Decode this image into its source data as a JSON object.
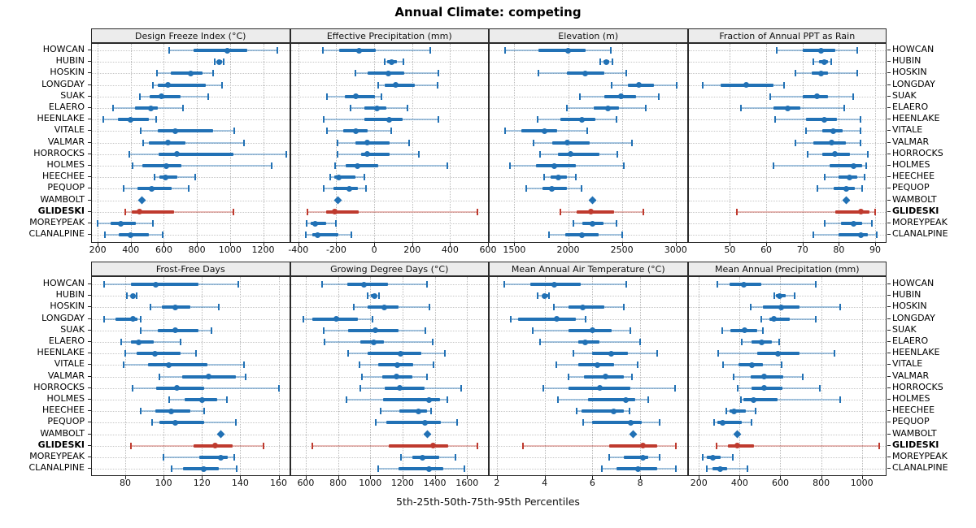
{
  "title": "Annual Climate: competing",
  "footer": "5th-25th-50th-75th-95th Percentiles",
  "stations": [
    "HOWCAN",
    "HUBIN",
    "HOSKIN",
    "LONGDAY",
    "SUAK",
    "ELAERO",
    "HEENLAKE",
    "VITALE",
    "VALMAR",
    "HORROCKS",
    "HOLMES",
    "HEECHEE",
    "PEQUOP",
    "WAMBOLT",
    "GLIDESKI",
    "MOREYPEAK",
    "CLANALPINE"
  ],
  "highlight_station": "GLIDESKI",
  "single_point_station": "WAMBOLT",
  "colors": {
    "series": "#2171b5",
    "series_light": "rgba(33,113,181,0.40)",
    "highlight": "#bf3a2e",
    "highlight_light": "rgba(191,58,46,0.35)",
    "strip_bg": "#ececec",
    "panel_border": "#2a2a2a",
    "grid": "#b9b9b9"
  },
  "chart_data": [
    {
      "type": "dotplot-percentiles",
      "title": "Design Freeze Index (°C)",
      "ticks": [
        200,
        400,
        600,
        800,
        1000,
        1200
      ],
      "xlim": [
        165,
        1357
      ],
      "percentiles": [
        [
          630,
          780,
          985,
          1105,
          1285
        ],
        [
          905,
          920,
          935,
          950,
          960
        ],
        [
          560,
          640,
          760,
          835,
          895
        ],
        [
          535,
          565,
          625,
          855,
          950
        ],
        [
          455,
          512,
          585,
          700,
          870
        ],
        [
          295,
          425,
          520,
          565,
          715
        ],
        [
          235,
          320,
          400,
          510,
          555
        ],
        [
          460,
          565,
          670,
          895,
          1025
        ],
        [
          475,
          510,
          625,
          730,
          1085
        ],
        [
          390,
          570,
          680,
          1020,
          1340
        ],
        [
          410,
          470,
          615,
          705,
          1250
        ],
        [
          545,
          575,
          610,
          680,
          790
        ],
        [
          355,
          440,
          525,
          645,
          750
        ],
        [
          465
        ],
        [
          365,
          405,
          455,
          660,
          1020
        ],
        [
          200,
          277,
          338,
          430,
          533
        ],
        [
          245,
          325,
          400,
          510,
          595
        ]
      ]
    },
    {
      "type": "dotplot-percentiles",
      "title": "Effective Precipitation (mm)",
      "ticks": [
        -400,
        -200,
        0,
        200,
        400,
        600
      ],
      "xlim": [
        -440,
        600
      ],
      "percentiles": [
        [
          -270,
          -185,
          -80,
          10,
          295
        ],
        [
          55,
          70,
          90,
          120,
          155
        ],
        [
          -100,
          -35,
          75,
          160,
          340
        ],
        [
          20,
          55,
          115,
          215,
          335
        ],
        [
          -250,
          -155,
          -95,
          5,
          40
        ],
        [
          -125,
          -50,
          15,
          65,
          175
        ],
        [
          -265,
          -50,
          80,
          150,
          340
        ],
        [
          -250,
          -165,
          -95,
          -35,
          90
        ],
        [
          -195,
          -100,
          -35,
          80,
          185
        ],
        [
          -195,
          -70,
          -35,
          80,
          235
        ],
        [
          -205,
          -150,
          -90,
          20,
          385
        ],
        [
          -230,
          -210,
          -185,
          -100,
          -50
        ],
        [
          -265,
          -215,
          -130,
          -85,
          -45
        ],
        [
          -190
        ],
        [
          -350,
          -255,
          -210,
          -80,
          545
        ],
        [
          -355,
          -335,
          -310,
          -255,
          -200
        ],
        [
          -360,
          -325,
          -300,
          -190,
          -120
        ]
      ]
    },
    {
      "type": "dotplot-percentiles",
      "title": "Elevation (m)",
      "ticks": [
        1500,
        2000,
        2500,
        3000
      ],
      "xlim": [
        1270,
        3104
      ],
      "percentiles": [
        [
          1410,
          1720,
          2000,
          2160,
          2400
        ],
        [
          2300,
          2330,
          2355,
          2380,
          2410
        ],
        [
          1720,
          1990,
          2160,
          2340,
          2540
        ],
        [
          2405,
          2555,
          2660,
          2800,
          3010
        ],
        [
          2110,
          2340,
          2490,
          2630,
          2840
        ],
        [
          1990,
          2240,
          2370,
          2475,
          2725
        ],
        [
          1715,
          1925,
          2125,
          2255,
          2450
        ],
        [
          1410,
          1565,
          1780,
          1900,
          2175
        ],
        [
          1675,
          1850,
          1990,
          2200,
          2590
        ],
        [
          1740,
          1905,
          2025,
          2290,
          2455
        ],
        [
          1460,
          1700,
          1875,
          2075,
          2520
        ],
        [
          1775,
          1835,
          1910,
          1990,
          2075
        ],
        [
          1610,
          1760,
          1850,
          1990,
          2125
        ],
        [
          2225
        ],
        [
          1925,
          2080,
          2210,
          2425,
          2700
        ],
        [
          2050,
          2130,
          2225,
          2330,
          2450
        ],
        [
          1825,
          1970,
          2125,
          2280,
          2500
        ]
      ]
    },
    {
      "type": "dotplot-percentiles",
      "title": "Fraction of Annual PPT as Rain",
      "ticks": [
        50,
        60,
        70,
        80,
        90
      ],
      "xlim": [
        38.6,
        92.9
      ],
      "percentiles": [
        [
          63,
          70,
          75,
          79,
          85
        ],
        [
          73,
          74.5,
          76,
          77,
          78
        ],
        [
          68,
          72.5,
          75,
          77,
          85
        ],
        [
          42.5,
          47.5,
          54.5,
          62,
          65
        ],
        [
          61,
          70,
          74,
          77,
          84
        ],
        [
          53,
          62,
          66,
          69.5,
          81.5
        ],
        [
          62.5,
          71,
          76,
          79.5,
          86
        ],
        [
          71,
          75.5,
          78.5,
          81,
          86
        ],
        [
          68,
          73,
          78,
          82,
          86
        ],
        [
          71.5,
          75.5,
          79,
          83,
          88
        ],
        [
          62,
          77.5,
          84,
          86.5,
          87.5
        ],
        [
          76,
          80,
          83,
          85,
          87
        ],
        [
          74,
          78.5,
          82,
          84.5,
          86.5
        ],
        [
          82
        ],
        [
          52,
          79,
          86,
          88.5,
          90
        ],
        [
          76,
          80.5,
          84,
          86.5,
          89
        ],
        [
          73,
          80,
          86,
          88,
          90.5
        ]
      ]
    },
    {
      "type": "dotplot-percentiles",
      "title": "Frost-Free Days",
      "ticks": [
        80,
        100,
        120,
        140,
        160
      ],
      "xlim": [
        62.6,
        165.5
      ],
      "percentiles": [
        [
          69,
          83,
          96,
          118,
          139
        ],
        [
          81,
          83,
          84,
          85,
          86
        ],
        [
          93,
          99,
          106,
          114,
          129
        ],
        [
          69,
          75,
          84,
          86.5,
          88
        ],
        [
          88,
          97,
          106,
          118,
          125
        ],
        [
          78,
          83,
          87,
          95,
          109
        ],
        [
          80,
          86,
          95.5,
          109,
          117
        ],
        [
          79,
          92,
          102.5,
          123,
          142
        ],
        [
          98,
          109.5,
          123.5,
          137.5,
          143
        ],
        [
          84,
          96,
          107,
          121,
          160
        ],
        [
          103,
          111,
          120,
          128,
          133
        ],
        [
          88,
          95.5,
          104,
          114,
          121
        ],
        [
          94,
          98,
          106,
          121,
          137.5
        ],
        [
          130
        ],
        [
          83,
          115.5,
          127,
          136,
          152
        ],
        [
          100,
          118.5,
          130,
          133.5,
          137
        ],
        [
          104,
          110,
          121,
          129,
          138
        ]
      ]
    },
    {
      "type": "dotplot-percentiles",
      "title": "Growing Degree Days (°C)",
      "ticks": [
        600,
        800,
        1000,
        1200,
        1400,
        1600
      ],
      "xlim": [
        507,
        1730
      ],
      "percentiles": [
        [
          700,
          860,
          960,
          1110,
          1350
        ],
        [
          985,
          1005,
          1025,
          1040,
          1055
        ],
        [
          900,
          985,
          1085,
          1175,
          1365
        ],
        [
          585,
          640,
          790,
          925,
          1015
        ],
        [
          710,
          865,
          1030,
          1175,
          1340
        ],
        [
          715,
          940,
          1020,
          1085,
          1385
        ],
        [
          865,
          985,
          1190,
          1315,
          1465
        ],
        [
          935,
          1050,
          1170,
          1265,
          1390
        ],
        [
          950,
          1075,
          1165,
          1260,
          1350
        ],
        [
          940,
          1090,
          1185,
          1335,
          1565
        ],
        [
          850,
          1080,
          1365,
          1435,
          1480
        ],
        [
          1065,
          1180,
          1300,
          1350,
          1375
        ],
        [
          1035,
          1100,
          1340,
          1440,
          1540
        ],
        [
          1355
        ],
        [
          640,
          1115,
          1390,
          1485,
          1665
        ],
        [
          1190,
          1260,
          1325,
          1425,
          1530
        ],
        [
          1050,
          1175,
          1365,
          1455,
          1585
        ]
      ]
    },
    {
      "type": "dotplot-percentiles",
      "title": "Mean Annual Air Temperature (°C)",
      "ticks": [
        2,
        4,
        6,
        8
      ],
      "xlim": [
        1.7,
        9.95
      ],
      "percentiles": [
        [
          2.3,
          3.4,
          4.4,
          5.5,
          7.4
        ],
        [
          3.7,
          3.9,
          4.0,
          4.15,
          4.2
        ],
        [
          4.4,
          5.0,
          5.6,
          6.5,
          7.3
        ],
        [
          2.6,
          2.9,
          4.5,
          5.3,
          5.7
        ],
        [
          3.5,
          5.0,
          6.0,
          6.8,
          7.6
        ],
        [
          3.8,
          5.4,
          5.7,
          6.3,
          8.0
        ],
        [
          5.2,
          6.0,
          6.8,
          7.5,
          8.7
        ],
        [
          4.5,
          5.4,
          6.2,
          6.9,
          7.9
        ],
        [
          5.0,
          5.65,
          6.55,
          7.3,
          7.65
        ],
        [
          3.95,
          5.0,
          6.3,
          7.6,
          9.45
        ],
        [
          4.55,
          5.8,
          7.4,
          7.8,
          8.35
        ],
        [
          5.35,
          5.55,
          6.9,
          7.3,
          7.55
        ],
        [
          5.6,
          6.0,
          7.6,
          8.05,
          8.8
        ],
        [
          7.7
        ],
        [
          3.1,
          6.7,
          8.1,
          8.7,
          9.5
        ],
        [
          6.7,
          7.3,
          8.1,
          8.35,
          8.8
        ],
        [
          6.4,
          7.0,
          7.9,
          8.7,
          9.5
        ]
      ]
    },
    {
      "type": "dotplot-percentiles",
      "title": "Mean Annual Precipitation (mm)",
      "ticks": [
        200,
        400,
        600,
        800,
        1000
      ],
      "xlim": [
        149,
        1117
      ],
      "percentiles": [
        [
          290,
          350,
          420,
          505,
          775
        ],
        [
          570,
          580,
          595,
          625,
          670
        ],
        [
          455,
          515,
          605,
          695,
          895
        ],
        [
          505,
          545,
          570,
          645,
          775
        ],
        [
          315,
          355,
          425,
          485,
          515
        ],
        [
          410,
          460,
          510,
          560,
          595
        ],
        [
          295,
          485,
          590,
          695,
          865
        ],
        [
          320,
          395,
          460,
          515,
          605
        ],
        [
          370,
          455,
          520,
          615,
          710
        ],
        [
          390,
          457,
          521,
          610,
          795
        ],
        [
          405,
          420,
          470,
          585,
          895
        ],
        [
          335,
          352,
          372,
          430,
          477
        ],
        [
          273,
          292,
          316,
          410,
          460
        ],
        [
          390
        ],
        [
          286,
          343,
          387,
          471,
          1085
        ],
        [
          220,
          237,
          269,
          306,
          365
        ],
        [
          240,
          266,
          303,
          339,
          438
        ]
      ]
    }
  ]
}
